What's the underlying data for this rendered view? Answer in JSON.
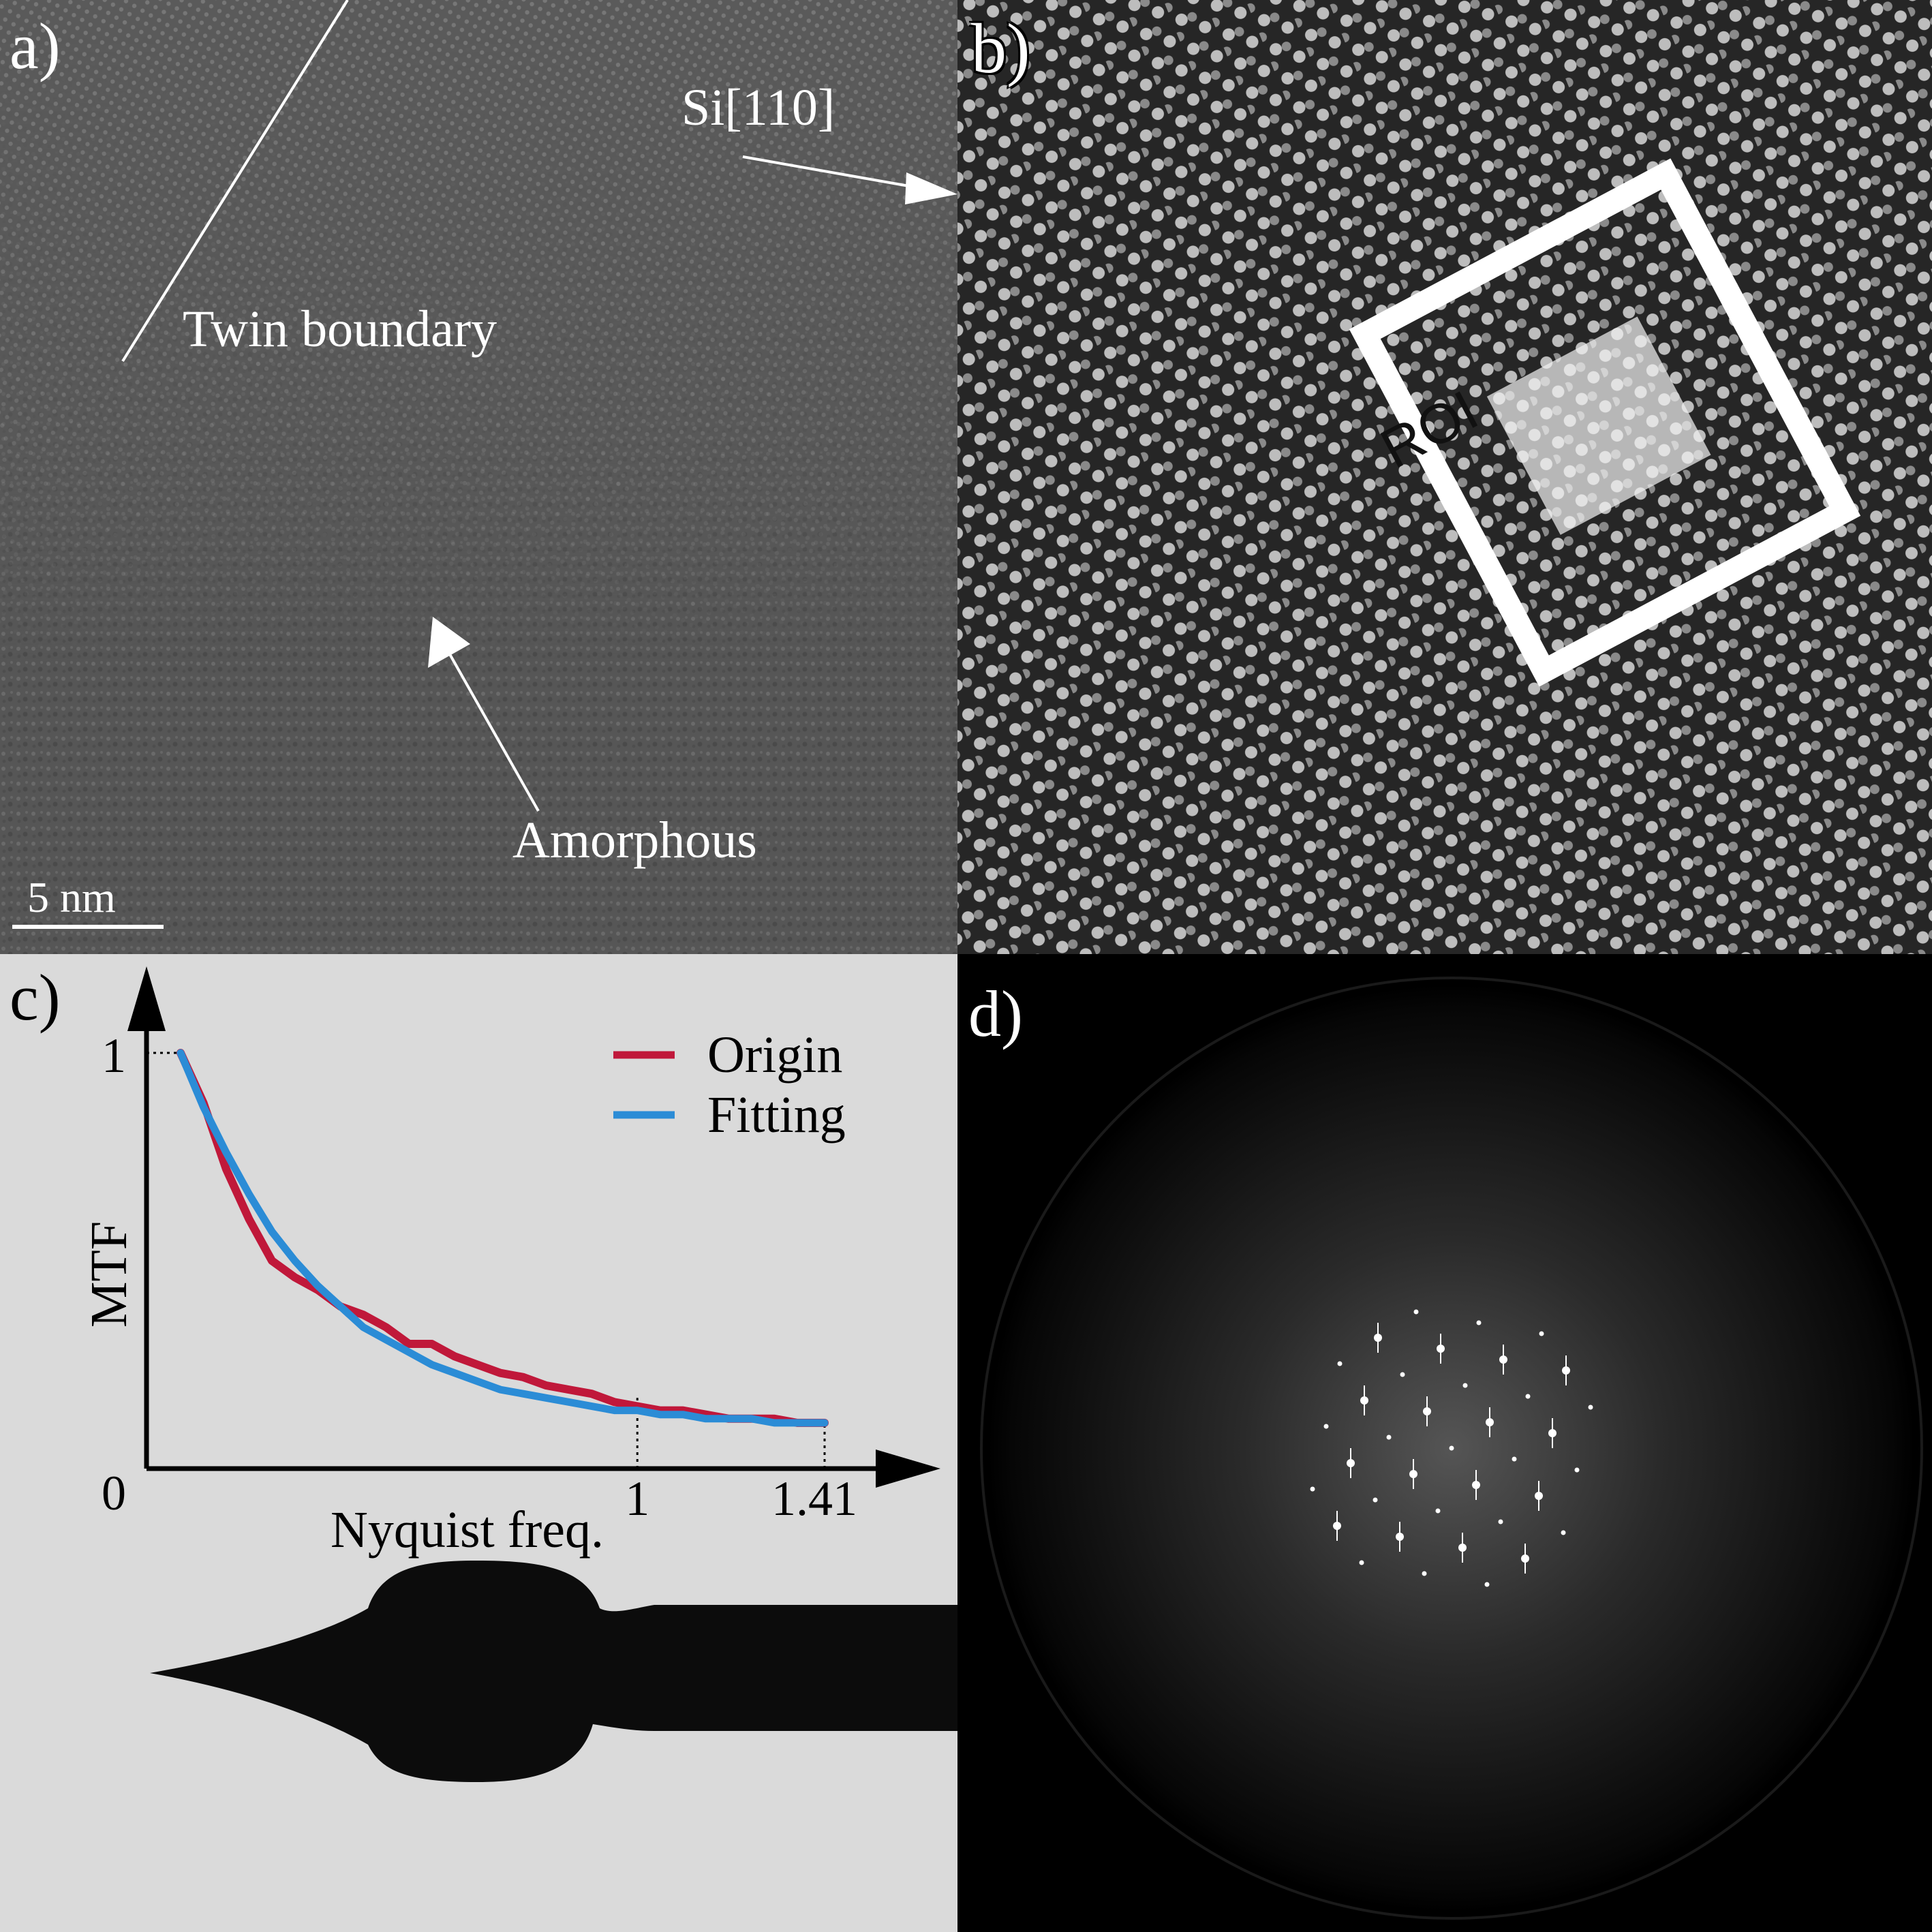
{
  "panels": {
    "a": {
      "label": "a)",
      "annotations": {
        "orientation": "Si[110]",
        "twin": "Twin boundary",
        "amorphous": "Amorphous"
      },
      "scale_bar": "5 nm"
    },
    "b": {
      "label": "b)",
      "roi": "ROI"
    },
    "c": {
      "label": "c)"
    },
    "d": {
      "label": "d)"
    }
  },
  "chart_data": {
    "type": "line",
    "title": "",
    "xlabel": "Nyquist freq.",
    "ylabel": "MTF",
    "xlim": [
      0,
      1.41
    ],
    "ylim": [
      0,
      1
    ],
    "y_ticks": [
      "0",
      "1"
    ],
    "x_ticks": [
      "1",
      "1.41"
    ],
    "legend_position": "top-right",
    "series": [
      {
        "name": "Origin",
        "color": "#c0183a",
        "x": [
          0.0,
          0.05,
          0.1,
          0.15,
          0.2,
          0.25,
          0.3,
          0.35,
          0.4,
          0.45,
          0.5,
          0.55,
          0.6,
          0.65,
          0.7,
          0.75,
          0.8,
          0.85,
          0.9,
          0.95,
          1.0,
          1.05,
          1.1,
          1.15,
          1.2,
          1.25,
          1.3,
          1.35,
          1.41
        ],
        "y": [
          1.0,
          0.88,
          0.72,
          0.6,
          0.5,
          0.46,
          0.43,
          0.39,
          0.37,
          0.34,
          0.3,
          0.3,
          0.27,
          0.25,
          0.23,
          0.22,
          0.2,
          0.19,
          0.18,
          0.16,
          0.15,
          0.14,
          0.14,
          0.13,
          0.12,
          0.12,
          0.12,
          0.11,
          0.11
        ]
      },
      {
        "name": "Fitting",
        "color": "#2b8cd6",
        "x": [
          0.0,
          0.05,
          0.1,
          0.15,
          0.2,
          0.25,
          0.3,
          0.35,
          0.4,
          0.45,
          0.5,
          0.55,
          0.6,
          0.65,
          0.7,
          0.75,
          0.8,
          0.85,
          0.9,
          0.95,
          1.0,
          1.05,
          1.1,
          1.15,
          1.2,
          1.25,
          1.3,
          1.35,
          1.41
        ],
        "y": [
          1.0,
          0.87,
          0.76,
          0.66,
          0.57,
          0.5,
          0.44,
          0.39,
          0.34,
          0.31,
          0.28,
          0.25,
          0.23,
          0.21,
          0.19,
          0.18,
          0.17,
          0.16,
          0.15,
          0.14,
          0.14,
          0.13,
          0.13,
          0.12,
          0.12,
          0.12,
          0.11,
          0.11,
          0.11
        ]
      }
    ]
  }
}
